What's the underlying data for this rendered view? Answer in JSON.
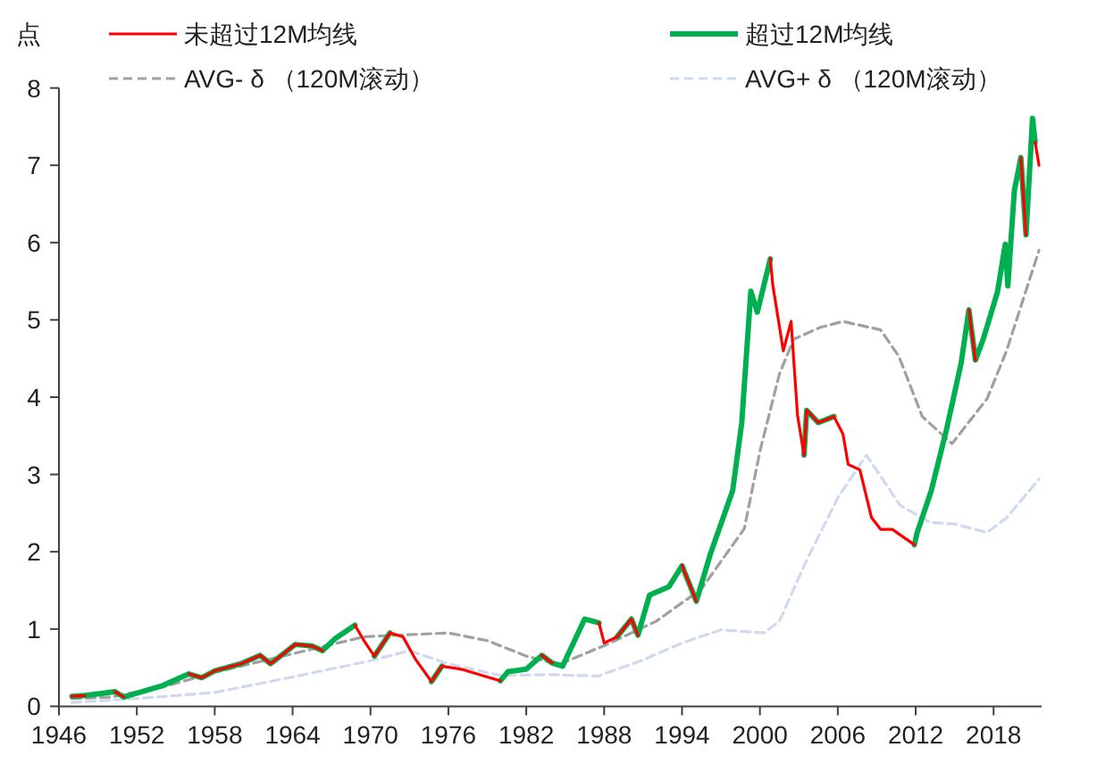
{
  "chart_data": {
    "type": "line",
    "ylabel": "点",
    "xlim": [
      1946,
      2021.7
    ],
    "xticks": [
      1946,
      1952,
      1958,
      1964,
      1970,
      1976,
      1982,
      1988,
      1994,
      2000,
      2006,
      2012,
      2018
    ],
    "ylim": [
      0,
      8
    ],
    "yticks": [
      0,
      1,
      2,
      3,
      4,
      5,
      6,
      7,
      8
    ],
    "grid": false,
    "legend": "top",
    "marker": "none",
    "x": [
      1947.0,
      1948.0,
      1949.0,
      1950.3,
      1951.0,
      1952.0,
      1954.0,
      1956.0,
      1957.0,
      1958.0,
      1960.0,
      1961.5,
      1962.3,
      1964.2,
      1965.5,
      1966.3,
      1967.3,
      1968.8,
      1969.5,
      1970.3,
      1971.5,
      1972.5,
      1973.5,
      1974.7,
      1975.5,
      1977.0,
      1979.0,
      1980.0,
      1980.6,
      1982.0,
      1983.2,
      1984.0,
      1984.8,
      1986.5,
      1987.6,
      1988.0,
      1989.0,
      1990.1,
      1990.6,
      1991.5,
      1993.0,
      1994.0,
      1995.1,
      1996.2,
      1997.9,
      1998.6,
      1999.3,
      1999.8,
      2000.8,
      2001.0,
      2001.8,
      2002.4,
      2002.9,
      2003.4,
      2003.6,
      2004.5,
      2005.7,
      2006.4,
      2006.8,
      2007.7,
      2008.6,
      2009.3,
      2010.2,
      2011.9,
      2012.1,
      2013.2,
      2014.4,
      2015.5,
      2016.1,
      2016.6,
      2017.2,
      2018.3,
      2018.9,
      2019.1,
      2019.6,
      2020.1,
      2020.5,
      2021.0,
      2021.2,
      2021.5
    ],
    "series": [
      {
        "name": "超过12M均线",
        "color": "#00b050",
        "line_style": "solid",
        "values": [
          0.13,
          0.14,
          0.16,
          0.19,
          0.12,
          0.17,
          0.27,
          0.42,
          0.37,
          0.46,
          0.55,
          0.66,
          0.55,
          0.8,
          0.78,
          0.72,
          0.88,
          1.05,
          null,
          0.65,
          0.95,
          null,
          null,
          0.32,
          0.52,
          null,
          null,
          0.33,
          0.45,
          0.48,
          0.66,
          0.56,
          0.52,
          1.13,
          1.08,
          null,
          0.9,
          1.13,
          0.92,
          1.44,
          1.55,
          1.82,
          1.36,
          1.98,
          2.79,
          3.67,
          5.37,
          5.1,
          5.79,
          null,
          null,
          null,
          null,
          3.25,
          3.83,
          3.67,
          3.75,
          null,
          null,
          null,
          null,
          null,
          null,
          2.09,
          2.24,
          2.79,
          3.6,
          4.44,
          5.13,
          4.48,
          4.75,
          5.36,
          5.98,
          5.44,
          6.67,
          7.1,
          6.1,
          7.61,
          7.3,
          null
        ]
      },
      {
        "name": "未超过12M均线",
        "color": "#ff0000",
        "line_style": "solid",
        "values": [
          0.13,
          0.14,
          null,
          0.19,
          0.12,
          null,
          null,
          0.42,
          0.37,
          0.46,
          0.55,
          0.66,
          0.55,
          0.8,
          0.78,
          0.72,
          null,
          1.05,
          0.85,
          0.65,
          0.95,
          0.9,
          0.6,
          0.32,
          0.52,
          0.48,
          0.38,
          0.33,
          null,
          null,
          0.66,
          0.56,
          null,
          null,
          1.08,
          0.82,
          0.9,
          1.13,
          0.92,
          null,
          null,
          1.82,
          1.36,
          null,
          null,
          null,
          null,
          null,
          5.79,
          5.44,
          4.6,
          4.98,
          3.76,
          3.25,
          3.83,
          3.67,
          3.75,
          3.52,
          3.13,
          3.06,
          2.44,
          2.29,
          2.29,
          2.09,
          null,
          null,
          null,
          null,
          5.13,
          4.48,
          null,
          null,
          null,
          null,
          null,
          7.1,
          6.1,
          null,
          7.3,
          7.0
        ]
      },
      {
        "name": "AVG- δ （120M滚动）",
        "color": "#a0a0a0",
        "line_style": "dashed",
        "x": [
          1947,
          1950,
          1954,
          1958,
          1964,
          1969.5,
          1976,
          1979,
          1982,
          1984.5,
          1988.2,
          1992,
          1995.5,
          1998.8,
          2000,
          2001.5,
          2002.6,
          2004.6,
          2006.4,
          2009.3,
          2010.7,
          2012.5,
          2014.8,
          2017.5,
          2019,
          2021.5
        ],
        "values": [
          0.1,
          0.12,
          0.25,
          0.44,
          0.68,
          0.9,
          0.95,
          0.85,
          0.65,
          0.54,
          0.8,
          1.1,
          1.52,
          2.3,
          3.3,
          4.3,
          4.75,
          4.9,
          4.98,
          4.87,
          4.53,
          3.75,
          3.4,
          3.98,
          4.6,
          5.9
        ]
      },
      {
        "name": "AVG+ δ （120M滚动）",
        "color": "#cfdaf0",
        "line_style": "dashed",
        "x": [
          1947,
          1952,
          1958,
          1964,
          1970,
          1973,
          1976,
          1980,
          1984,
          1987.5,
          1991,
          1994,
          1997,
          2000.3,
          2001.5,
          2003.4,
          2006,
          2008.2,
          2010.8,
          2013.1,
          2015,
          2017.5,
          2019,
          2021.5
        ],
        "values": [
          0.05,
          0.1,
          0.18,
          0.38,
          0.59,
          0.72,
          0.55,
          0.4,
          0.41,
          0.39,
          0.6,
          0.82,
          0.99,
          0.95,
          1.1,
          1.82,
          2.7,
          3.25,
          2.6,
          2.38,
          2.36,
          2.25,
          2.44,
          2.94
        ]
      }
    ]
  }
}
